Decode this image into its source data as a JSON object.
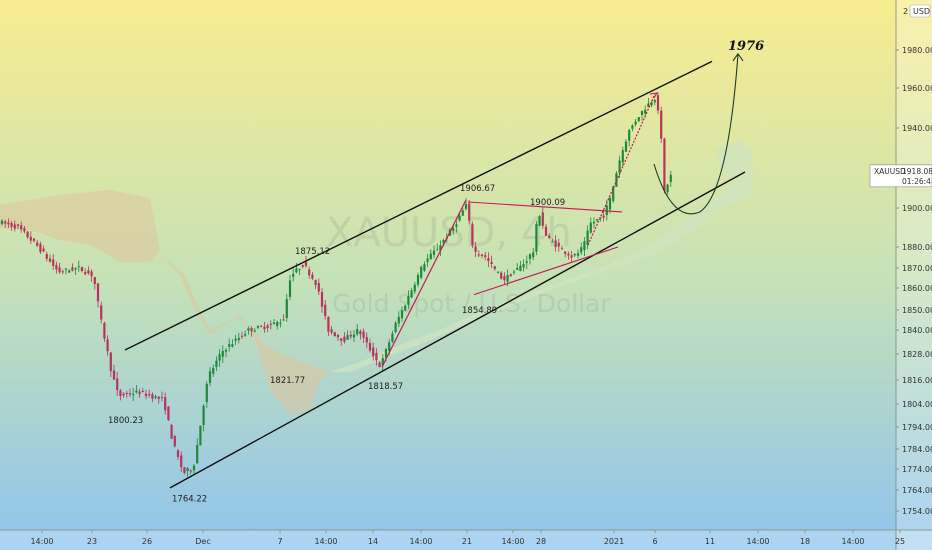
{
  "chart_data": {
    "type": "candlestick",
    "symbol": "XAUUSD",
    "watermark_symbol": "XAUUSD, 4h",
    "watermark_name": "Gold Spot / U.S. Dollar",
    "currency": "USD",
    "y_axis_top_label": "2",
    "ylim": [
      1746,
      2002
    ],
    "y_ticks": [
      1754.0,
      1764.0,
      1774.0,
      1784.0,
      1794.0,
      1804.0,
      1816.0,
      1828.0,
      1840.0,
      1850.0,
      1860.0,
      1870.0,
      1880.0,
      1900.0,
      1920.0,
      1940.0,
      1960.0,
      1980.0
    ],
    "x_ticks": [
      "14:00",
      "23",
      "26",
      "Dec",
      "7",
      "14:00",
      "14",
      "14:00",
      "21",
      "14:00",
      "28",
      "2021",
      "6",
      "11",
      "14:00",
      "18",
      "14:00",
      "25"
    ],
    "price_badge": {
      "symbol": "XAUUSD",
      "price": "1918.08",
      "countdown": "01:26:41"
    },
    "level_labels": [
      "1800.23",
      "1764.22",
      "1875.12",
      "1821.77",
      "1818.57",
      "1906.67",
      "1854.89",
      "1900.09"
    ],
    "projection_label": "1976",
    "colors": {
      "bull": "#1b8a3a",
      "bear": "#b8325c",
      "cloud": "#cfe4c0",
      "cloud_bear": "#e0c49a",
      "channel": "#111111",
      "pattern": "#c2185b"
    }
  }
}
